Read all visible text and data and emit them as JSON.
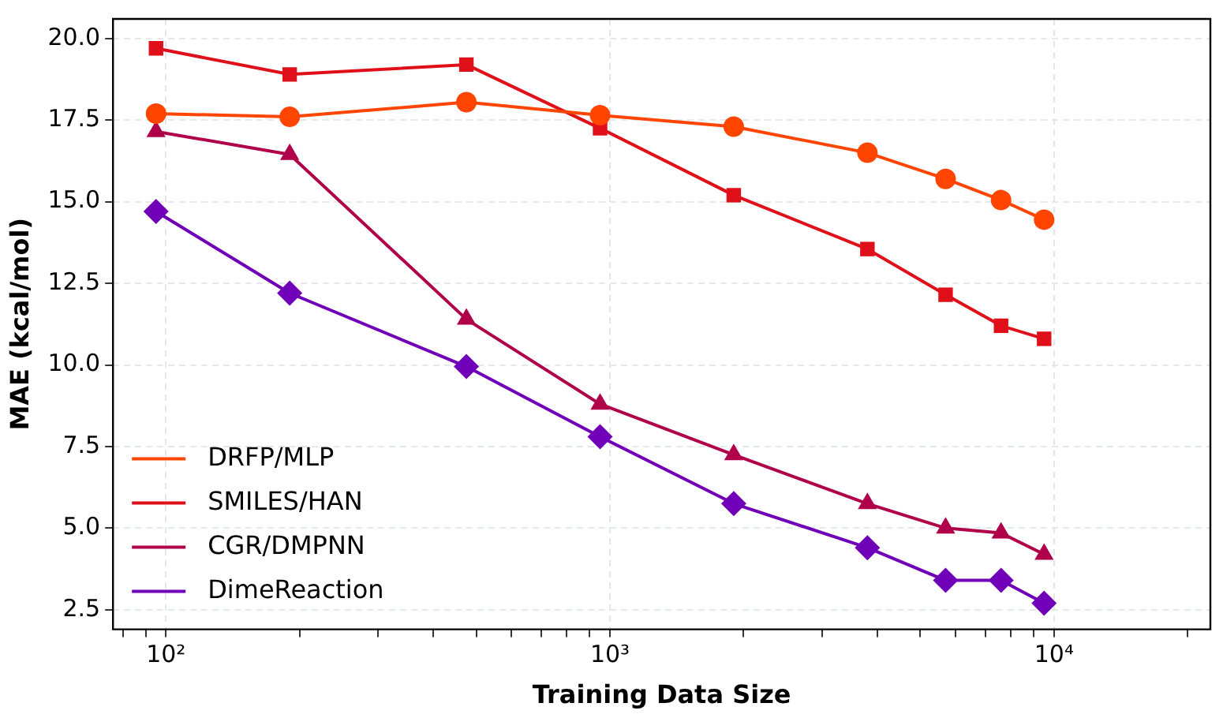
{
  "chart_data": {
    "type": "line",
    "xlabel": "Training Data Size",
    "ylabel": "MAE (kcal/mol)",
    "log": "x",
    "grid": true,
    "legend": "bottom left",
    "x": [
      95,
      190,
      475,
      950,
      1900,
      3800,
      5700,
      7600,
      9500
    ],
    "xlim": [
      76,
      22500
    ],
    "xticks": [
      {
        "value": 80,
        "label": null
      },
      {
        "value": 90,
        "label": null
      },
      {
        "value": 100,
        "label": "10²"
      },
      {
        "value": 200,
        "label": null
      },
      {
        "value": 300,
        "label": null
      },
      {
        "value": 400,
        "label": null
      },
      {
        "value": 500,
        "label": null
      },
      {
        "value": 600,
        "label": null
      },
      {
        "value": 700,
        "label": null
      },
      {
        "value": 800,
        "label": null
      },
      {
        "value": 900,
        "label": null
      },
      {
        "value": 1000,
        "label": "10³"
      },
      {
        "value": 2000,
        "label": null
      },
      {
        "value": 3000,
        "label": null
      },
      {
        "value": 4000,
        "label": null
      },
      {
        "value": 5000,
        "label": null
      },
      {
        "value": 6000,
        "label": null
      },
      {
        "value": 7000,
        "label": null
      },
      {
        "value": 8000,
        "label": null
      },
      {
        "value": 9000,
        "label": null
      },
      {
        "value": 10000,
        "label": "10⁴"
      },
      {
        "value": 20000,
        "label": null
      }
    ],
    "ylim": [
      1.9,
      20.6
    ],
    "yticks": [
      {
        "value": 2.5,
        "label": "2.5"
      },
      {
        "value": 5,
        "label": "5.0"
      },
      {
        "value": 7.5,
        "label": "7.5"
      },
      {
        "value": 10,
        "label": "10.0"
      },
      {
        "value": 12.5,
        "label": "12.5"
      },
      {
        "value": 15,
        "label": "15.0"
      },
      {
        "value": 17.5,
        "label": "17.5"
      },
      {
        "value": 20,
        "label": "20.0"
      }
    ],
    "line_style": "solid",
    "series": [
      {
        "name": "DRFP/MLP",
        "color": "#ff4500",
        "marker": "circle",
        "values": [
          17.7,
          17.6,
          18.05,
          17.65,
          17.3,
          16.5,
          15.7,
          15.05,
          14.45
        ]
      },
      {
        "name": "SMILES/HAN",
        "color": "#e0101a",
        "marker": "square",
        "values": [
          19.7,
          18.9,
          19.2,
          17.25,
          15.2,
          13.55,
          12.15,
          11.2,
          10.8
        ]
      },
      {
        "name": "CGR/DMPNN",
        "color": "#b0004a",
        "marker": "triangle",
        "values": [
          17.15,
          16.45,
          11.4,
          8.8,
          7.25,
          5.75,
          5.0,
          4.85,
          4.2
        ]
      },
      {
        "name": "DimeReaction",
        "color": "#7000b8",
        "marker": "diamond",
        "values": [
          14.7,
          12.2,
          9.95,
          7.8,
          5.75,
          4.4,
          3.4,
          3.4,
          2.7
        ]
      }
    ]
  }
}
